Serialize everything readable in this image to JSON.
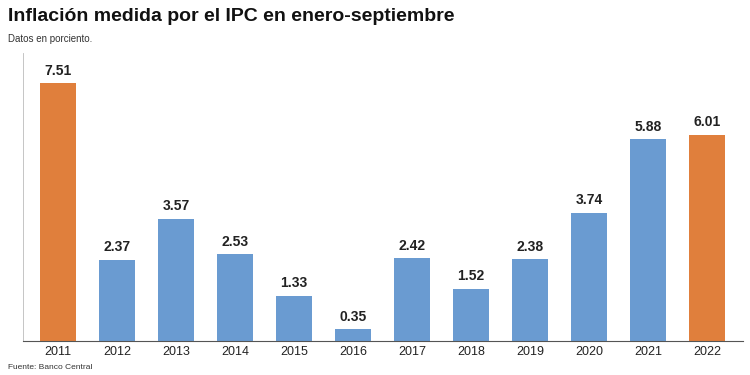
{
  "chart_data": {
    "type": "bar",
    "title": "Inflación medida por el IPC en enero-septiembre",
    "subtitle": "Datos en porciento.",
    "source": "Fuente: Banco Central",
    "categories": [
      "2011",
      "2012",
      "2013",
      "2014",
      "2015",
      "2016",
      "2017",
      "2018",
      "2019",
      "2020",
      "2021",
      "2022"
    ],
    "values": [
      7.51,
      2.37,
      3.57,
      2.53,
      1.33,
      0.35,
      2.42,
      1.52,
      2.38,
      3.74,
      5.88,
      6.01
    ],
    "colors": [
      "#e07f3c",
      "#6a9bd1",
      "#6a9bd1",
      "#6a9bd1",
      "#6a9bd1",
      "#6a9bd1",
      "#6a9bd1",
      "#6a9bd1",
      "#6a9bd1",
      "#6a9bd1",
      "#6a9bd1",
      "#e07f3c"
    ],
    "ylim": [
      0,
      8.4
    ],
    "yticks": [],
    "grid": false,
    "data_labels": true,
    "tick_labels": "x"
  }
}
